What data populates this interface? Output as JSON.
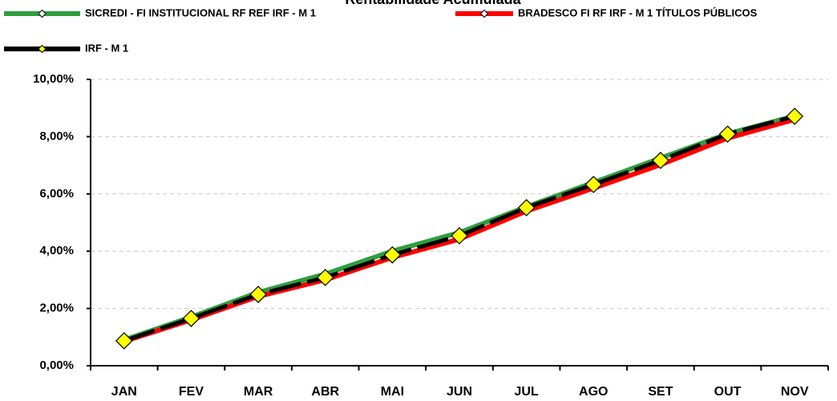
{
  "chart_data": {
    "type": "line",
    "title": "Rentabilidade Acumulada",
    "categories": [
      "JAN",
      "FEV",
      "MAR",
      "ABR",
      "MAI",
      "JUN",
      "JUL",
      "AGO",
      "SET",
      "OUT",
      "NOV"
    ],
    "series": [
      {
        "name": "SICREDI - FI INSTITUCIONAL RF REF IRF - M 1",
        "color": "#2e9e3e",
        "values": [
          0.9,
          1.7,
          2.56,
          3.2,
          4.0,
          4.65,
          5.55,
          6.4,
          7.25,
          8.1,
          8.72
        ]
      },
      {
        "name": "BRADESCO FI RF IRF - M 1 TÍTULOS PÚBLICOS",
        "color": "#ff0000",
        "values": [
          0.85,
          1.6,
          2.42,
          3.0,
          3.78,
          4.42,
          5.4,
          6.2,
          7.02,
          7.95,
          8.6
        ]
      },
      {
        "name": "IRF - M 1",
        "color": "#000000",
        "marker_color": "#ffff00",
        "values": [
          0.87,
          1.65,
          2.49,
          3.08,
          3.87,
          4.54,
          5.52,
          6.33,
          7.17,
          8.09,
          8.71
        ]
      }
    ],
    "ylim": [
      0,
      10
    ],
    "yticks": [
      {
        "value": 0,
        "label": "0,00%"
      },
      {
        "value": 2,
        "label": "2,00%"
      },
      {
        "value": 4,
        "label": "4,00%"
      },
      {
        "value": 6,
        "label": "6,00%"
      },
      {
        "value": 8,
        "label": "8,00%"
      },
      {
        "value": 10,
        "label": "10,00%"
      }
    ],
    "grid": true
  }
}
